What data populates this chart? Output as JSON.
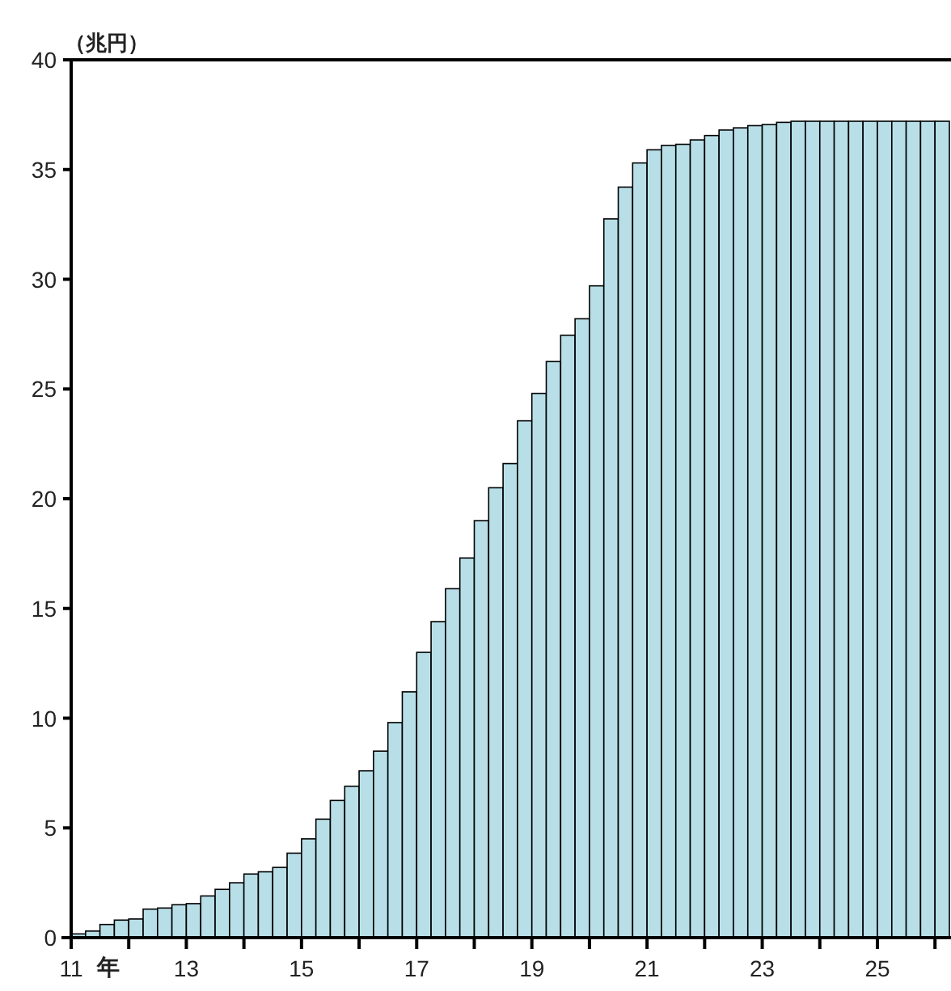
{
  "chart_data": {
    "type": "bar",
    "ylabel": "（兆円）",
    "xlabel": "年",
    "x": [
      11.125,
      11.375,
      11.625,
      11.875,
      12.125,
      12.375,
      12.625,
      12.875,
      13.125,
      13.375,
      13.625,
      13.875,
      14.125,
      14.375,
      14.625,
      14.875,
      15.125,
      15.375,
      15.625,
      15.875,
      16.125,
      16.375,
      16.625,
      16.875,
      17.125,
      17.375,
      17.625,
      17.875,
      18.125,
      18.375,
      18.625,
      18.875,
      19.125,
      19.375,
      19.625,
      19.875,
      20.125,
      20.375,
      20.625,
      20.875,
      21.125,
      21.375,
      21.625,
      21.875,
      22.125,
      22.375,
      22.625,
      22.875,
      23.125,
      23.375,
      23.625,
      23.875,
      24.125,
      24.375,
      24.625,
      24.875,
      25.125,
      25.375,
      25.625,
      25.875,
      26.125
    ],
    "values": [
      0.17,
      0.3,
      0.6,
      0.8,
      0.85,
      1.3,
      1.35,
      1.5,
      1.55,
      1.9,
      2.2,
      2.5,
      2.9,
      3.0,
      3.2,
      3.85,
      4.5,
      5.4,
      6.25,
      6.9,
      7.6,
      8.5,
      9.8,
      11.2,
      13.0,
      14.4,
      15.9,
      17.3,
      19.0,
      20.5,
      21.6,
      23.55,
      24.8,
      26.25,
      27.45,
      28.2,
      29.7,
      32.75,
      34.2,
      35.3,
      35.9,
      36.1,
      36.15,
      36.35,
      36.55,
      36.8,
      36.9,
      37.0,
      37.05,
      37.15,
      37.2,
      37.2,
      37.2,
      37.2,
      37.2,
      37.2,
      37.2,
      37.2,
      37.2,
      37.2,
      37.2
    ],
    "color": "#b8dfe8",
    "xlim": [
      11,
      26.25
    ],
    "ylim": [
      0,
      40
    ],
    "xticks": [
      11,
      {
        "value": 12,
        "label": null
      },
      13,
      {
        "value": 14,
        "label": null
      },
      15,
      {
        "value": 16,
        "label": null
      },
      17,
      {
        "value": 18,
        "label": null
      },
      19,
      {
        "value": 20,
        "label": null
      },
      21,
      {
        "value": 22,
        "label": null
      },
      23,
      {
        "value": 24,
        "label": null
      },
      25,
      {
        "value": 26,
        "label": null
      }
    ],
    "yticks": [
      0,
      5,
      10,
      15,
      20,
      25,
      30,
      35,
      40
    ]
  }
}
